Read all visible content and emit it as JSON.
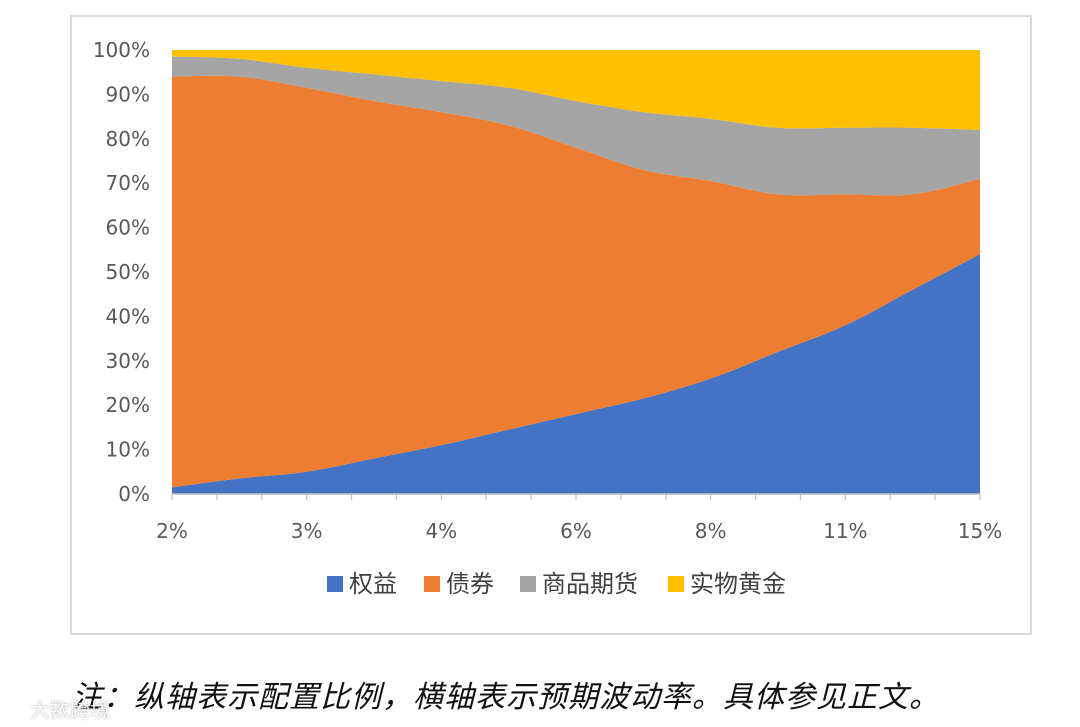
{
  "chart_data": {
    "type": "area",
    "stacked": true,
    "percent": true,
    "categories": [
      "2%",
      "",
      "3%",
      "",
      "4%",
      "",
      "6%",
      "",
      "8%",
      "",
      "11%",
      "",
      "15%"
    ],
    "x_labels": [
      "2%",
      "3%",
      "4%",
      "6%",
      "8%",
      "11%",
      "15%"
    ],
    "y_ticks": [
      "0%",
      "10%",
      "20%",
      "30%",
      "40%",
      "50%",
      "60%",
      "70%",
      "80%",
      "90%",
      "100%"
    ],
    "ylim": [
      0,
      100
    ],
    "legend_position": "bottom",
    "series": [
      {
        "name": "权益",
        "color": "#4472c4",
        "values": [
          1.5,
          3.5,
          5,
          8,
          11,
          14.5,
          18,
          21.5,
          26,
          32,
          38,
          46,
          54
        ]
      },
      {
        "name": "债券",
        "color": "#ed7d31",
        "values": [
          92.5,
          90.5,
          86.5,
          80.5,
          75,
          68.5,
          60,
          51.5,
          44.5,
          35.5,
          29.5,
          21.5,
          17
        ]
      },
      {
        "name": "商品期货",
        "color": "#a5a5a5",
        "values": [
          4.5,
          4,
          4.5,
          6,
          7,
          8.5,
          10.5,
          13,
          14,
          15,
          15,
          15,
          11
        ]
      },
      {
        "name": "实物黄金",
        "color": "#ffc000",
        "values": [
          1.5,
          2,
          4,
          5.5,
          7,
          8.5,
          11.5,
          14,
          15.5,
          17.5,
          17.5,
          17.5,
          18
        ]
      }
    ]
  },
  "note": "注：纵轴表示配置比例，横轴表示预期波动率。具体参见正文。",
  "watermark": {
    "icon": "brand-logo-icon",
    "text": "大数跨境"
  }
}
